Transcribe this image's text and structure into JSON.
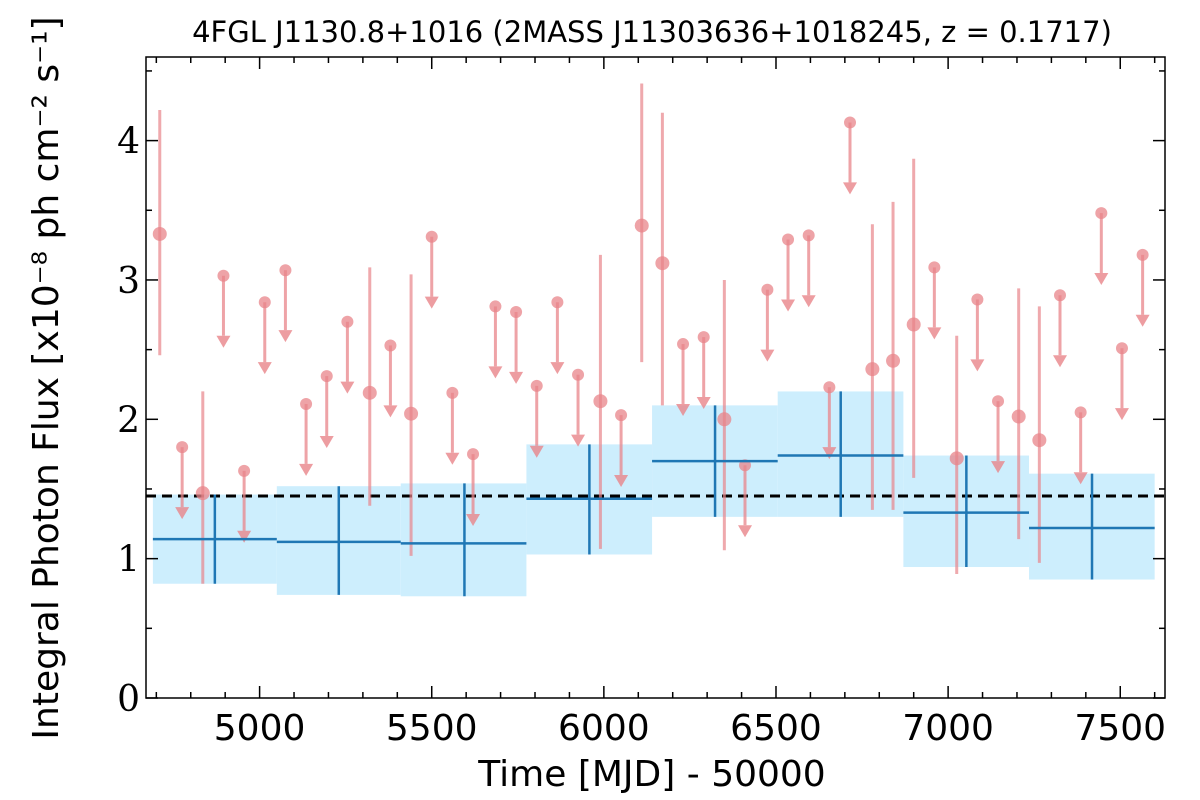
{
  "chart_data": {
    "type": "scatter",
    "title": "4FGL J1130.8+1016 (2MASS J11303636+1018245, z = 0.1717)",
    "xlabel": "Time [MJD] - 50000",
    "ylabel": "Integral Photon Flux [x10⁻⁸ ph cm⁻² s⁻¹]",
    "xlim": [
      4670,
      7630
    ],
    "ylim": [
      0,
      4.6
    ],
    "x_ticks": [
      5000,
      5500,
      6000,
      6500,
      7000,
      7500
    ],
    "y_ticks": [
      0,
      1,
      2,
      3,
      4
    ],
    "x_tick_labels": [
      "5000",
      "5500",
      "6000",
      "6500",
      "7000",
      "7500"
    ],
    "y_tick_labels": [
      "0",
      "1",
      "2",
      "3",
      "4"
    ],
    "grid": false,
    "colors": {
      "short_bins": "#e8848a",
      "long_bins": "#1f77b4",
      "long_bin_band": "#cdeefd",
      "mean_line": "#000000"
    },
    "mean_flux": 1.45,
    "series": [
      {
        "points": [
          {
            "x": 4710,
            "y": 3.33,
            "yerr": [
              2.46,
              4.22
            ]
          },
          {
            "x": 4835,
            "y": 1.47,
            "yerr": [
              0.82,
              2.2
            ]
          },
          {
            "x": 5320,
            "y": 2.19,
            "yerr": [
              1.38,
              3.09
            ]
          },
          {
            "x": 5440,
            "y": 2.04,
            "yerr": [
              1.02,
              3.04
            ]
          },
          {
            "x": 5990,
            "y": 2.13,
            "yerr": [
              1.07,
              3.18
            ]
          },
          {
            "x": 6110,
            "y": 3.39,
            "yerr": [
              2.41,
              4.41
            ]
          },
          {
            "x": 6170,
            "y": 3.12,
            "yerr": [
              2.1,
              4.2
            ]
          },
          {
            "x": 6350,
            "y": 2.0,
            "yerr": [
              1.06,
              3.0
            ]
          },
          {
            "x": 6780,
            "y": 2.36,
            "yerr": [
              1.35,
              3.4
            ]
          },
          {
            "x": 6840,
            "y": 2.42,
            "yerr": [
              1.35,
              3.56
            ]
          },
          {
            "x": 6900,
            "y": 2.68,
            "yerr": [
              1.58,
              3.87
            ]
          },
          {
            "x": 7025,
            "y": 1.72,
            "yerr": [
              0.89,
              2.6
            ]
          },
          {
            "x": 7205,
            "y": 2.02,
            "yerr": [
              1.14,
              2.94
            ]
          },
          {
            "x": 7265,
            "y": 1.85,
            "yerr": [
              0.97,
              2.81
            ]
          }
        ]
      },
      {
        "upper_limits": [
          {
            "x": 4775,
            "y": 1.8
          },
          {
            "x": 4895,
            "y": 3.03
          },
          {
            "x": 4955,
            "y": 1.63
          },
          {
            "x": 5015,
            "y": 2.84
          },
          {
            "x": 5075,
            "y": 3.07
          },
          {
            "x": 5135,
            "y": 2.11
          },
          {
            "x": 5195,
            "y": 2.31
          },
          {
            "x": 5255,
            "y": 2.7
          },
          {
            "x": 5380,
            "y": 2.53
          },
          {
            "x": 5500,
            "y": 3.31
          },
          {
            "x": 5560,
            "y": 2.19
          },
          {
            "x": 5620,
            "y": 1.75
          },
          {
            "x": 5685,
            "y": 2.81
          },
          {
            "x": 5745,
            "y": 2.77
          },
          {
            "x": 5805,
            "y": 2.24
          },
          {
            "x": 5865,
            "y": 2.84
          },
          {
            "x": 5925,
            "y": 2.32
          },
          {
            "x": 6050,
            "y": 2.03
          },
          {
            "x": 6230,
            "y": 2.54
          },
          {
            "x": 6290,
            "y": 2.59
          },
          {
            "x": 6410,
            "y": 1.67
          },
          {
            "x": 6475,
            "y": 2.93
          },
          {
            "x": 6535,
            "y": 3.29
          },
          {
            "x": 6595,
            "y": 3.32
          },
          {
            "x": 6655,
            "y": 2.23
          },
          {
            "x": 6715,
            "y": 4.13
          },
          {
            "x": 6960,
            "y": 3.09
          },
          {
            "x": 7085,
            "y": 2.86
          },
          {
            "x": 7145,
            "y": 2.13
          },
          {
            "x": 7325,
            "y": 2.89
          },
          {
            "x": 7385,
            "y": 2.05
          },
          {
            "x": 7445,
            "y": 3.48
          },
          {
            "x": 7505,
            "y": 2.51
          },
          {
            "x": 7565,
            "y": 3.18
          }
        ]
      },
      {
        "bins": [
          {
            "x_start": 4690,
            "x_end": 5050,
            "x_center": 4870,
            "y": 1.14,
            "yerr": [
              0.82,
              1.46
            ]
          },
          {
            "x_start": 5050,
            "x_end": 5410,
            "x_center": 5230,
            "y": 1.12,
            "yerr": [
              0.74,
              1.52
            ]
          },
          {
            "x_start": 5410,
            "x_end": 5775,
            "x_center": 5595,
            "y": 1.11,
            "yerr": [
              0.73,
              1.54
            ]
          },
          {
            "x_start": 5775,
            "x_end": 6140,
            "x_center": 5958,
            "y": 1.43,
            "yerr": [
              1.03,
              1.82
            ]
          },
          {
            "x_start": 6140,
            "x_end": 6505,
            "x_center": 6323,
            "y": 1.7,
            "yerr": [
              1.3,
              2.1
            ]
          },
          {
            "x_start": 6505,
            "x_end": 6870,
            "x_center": 6688,
            "y": 1.74,
            "yerr": [
              1.3,
              2.2
            ]
          },
          {
            "x_start": 6870,
            "x_end": 7235,
            "x_center": 7053,
            "y": 1.33,
            "yerr": [
              0.94,
              1.74
            ]
          },
          {
            "x_start": 7235,
            "x_end": 7600,
            "x_center": 7418,
            "y": 1.22,
            "yerr": [
              0.85,
              1.61
            ]
          }
        ]
      }
    ]
  }
}
